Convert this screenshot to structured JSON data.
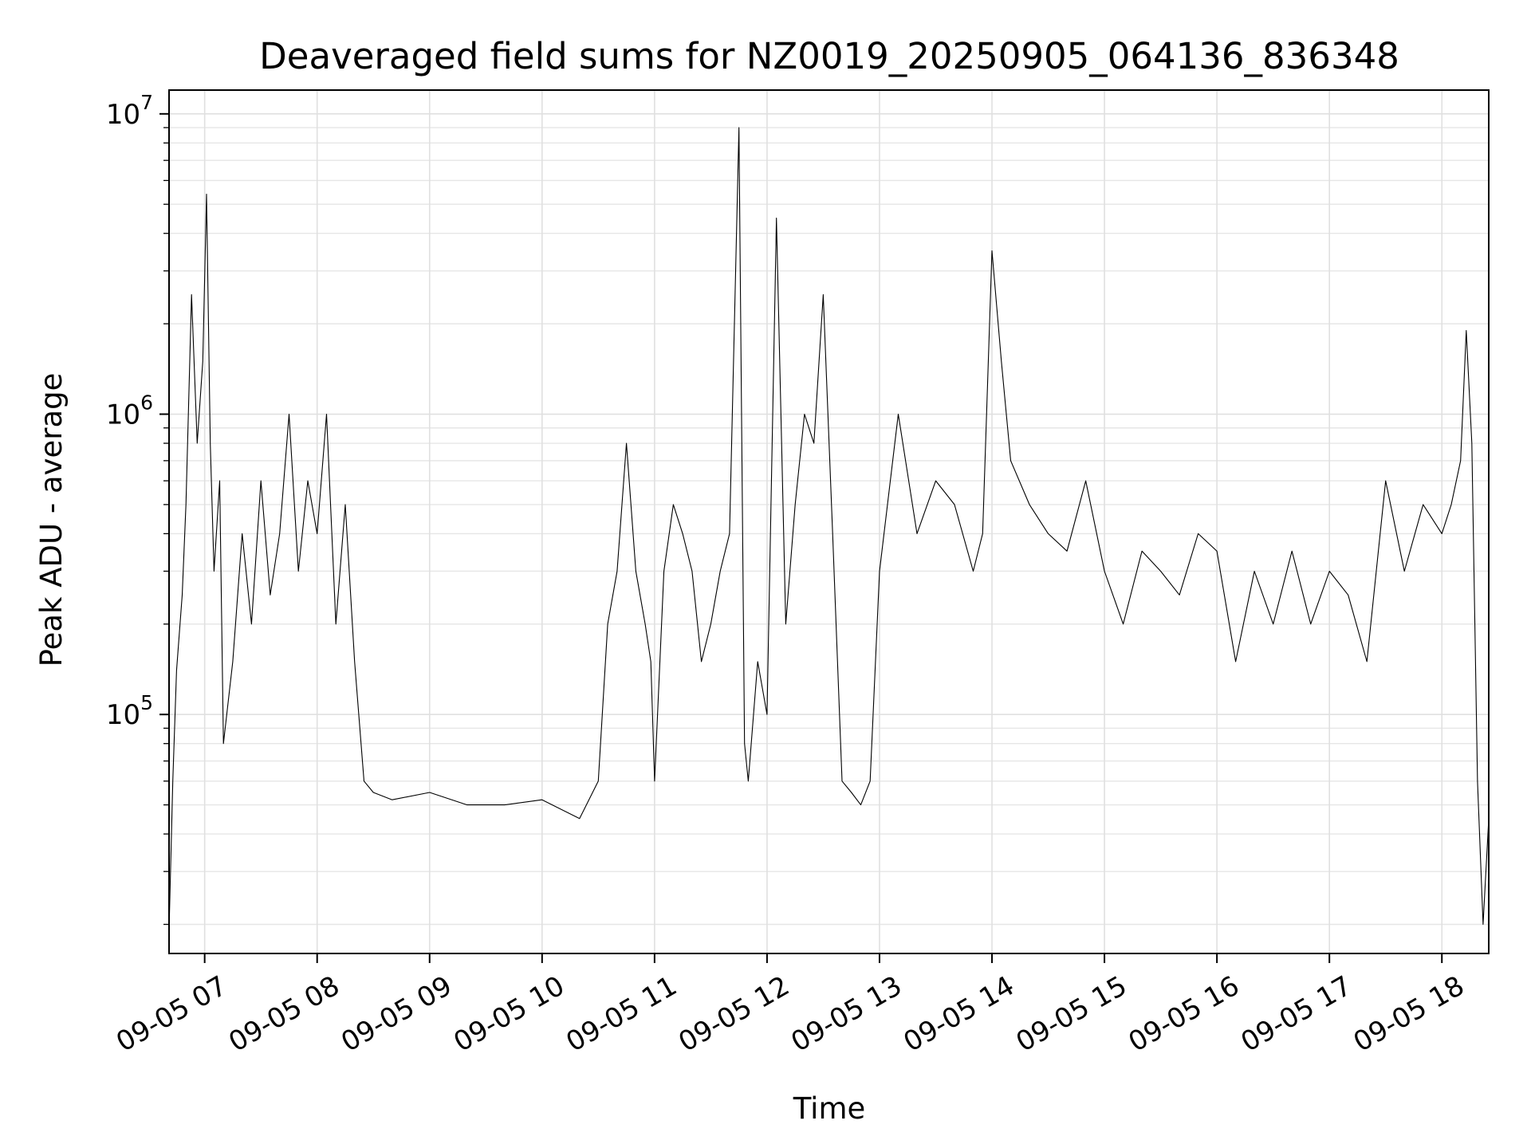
{
  "chart_data": {
    "type": "line",
    "title": "Deaveraged field sums for NZ0019_20250905_064136_836348",
    "xlabel": "Time",
    "ylabel": "Peak ADU - average",
    "yscale": "log",
    "grid": true,
    "xlim": [
      "2025-09-05 06:41",
      "2025-09-05 18:25"
    ],
    "ylim": [
      16000,
      12000000
    ],
    "x_ticks": [
      "09-05 07",
      "09-05 08",
      "09-05 09",
      "09-05 10",
      "09-05 11",
      "09-05 12",
      "09-05 13",
      "09-05 14",
      "09-05 15",
      "09-05 16",
      "09-05 17",
      "09-05 18"
    ],
    "y_ticks": [
      {
        "base": "10",
        "exp": "5"
      },
      {
        "base": "10",
        "exp": "6"
      },
      {
        "base": "10",
        "exp": "7"
      }
    ],
    "series": [
      {
        "color": "#000000",
        "x": [
          "2025-09-05 06:41",
          "2025-09-05 06:43",
          "2025-09-05 06:45",
          "2025-09-05 06:48",
          "2025-09-05 06:50",
          "2025-09-05 06:53",
          "2025-09-05 06:56",
          "2025-09-05 06:59",
          "2025-09-05 07:01",
          "2025-09-05 07:03",
          "2025-09-05 07:05",
          "2025-09-05 07:08",
          "2025-09-05 07:10",
          "2025-09-05 07:15",
          "2025-09-05 07:20",
          "2025-09-05 07:25",
          "2025-09-05 07:30",
          "2025-09-05 07:35",
          "2025-09-05 07:40",
          "2025-09-05 07:45",
          "2025-09-05 07:50",
          "2025-09-05 07:55",
          "2025-09-05 08:00",
          "2025-09-05 08:05",
          "2025-09-05 08:10",
          "2025-09-05 08:15",
          "2025-09-05 08:20",
          "2025-09-05 08:25",
          "2025-09-05 08:30",
          "2025-09-05 08:40",
          "2025-09-05 09:00",
          "2025-09-05 09:20",
          "2025-09-05 09:40",
          "2025-09-05 10:00",
          "2025-09-05 10:20",
          "2025-09-05 10:30",
          "2025-09-05 10:35",
          "2025-09-05 10:40",
          "2025-09-05 10:45",
          "2025-09-05 10:50",
          "2025-09-05 10:55",
          "2025-09-05 10:58",
          "2025-09-05 11:00",
          "2025-09-05 11:05",
          "2025-09-05 11:10",
          "2025-09-05 11:15",
          "2025-09-05 11:20",
          "2025-09-05 11:25",
          "2025-09-05 11:30",
          "2025-09-05 11:35",
          "2025-09-05 11:40",
          "2025-09-05 11:45",
          "2025-09-05 11:48",
          "2025-09-05 11:50",
          "2025-09-05 11:55",
          "2025-09-05 12:00",
          "2025-09-05 12:05",
          "2025-09-05 12:10",
          "2025-09-05 12:15",
          "2025-09-05 12:20",
          "2025-09-05 12:25",
          "2025-09-05 12:30",
          "2025-09-05 12:35",
          "2025-09-05 12:40",
          "2025-09-05 12:45",
          "2025-09-05 12:50",
          "2025-09-05 12:55",
          "2025-09-05 13:00",
          "2025-09-05 13:10",
          "2025-09-05 13:20",
          "2025-09-05 13:30",
          "2025-09-05 13:40",
          "2025-09-05 13:50",
          "2025-09-05 13:55",
          "2025-09-05 14:00",
          "2025-09-05 14:05",
          "2025-09-05 14:10",
          "2025-09-05 14:20",
          "2025-09-05 14:30",
          "2025-09-05 14:40",
          "2025-09-05 14:50",
          "2025-09-05 15:00",
          "2025-09-05 15:10",
          "2025-09-05 15:20",
          "2025-09-05 15:30",
          "2025-09-05 15:40",
          "2025-09-05 15:50",
          "2025-09-05 16:00",
          "2025-09-05 16:10",
          "2025-09-05 16:20",
          "2025-09-05 16:30",
          "2025-09-05 16:40",
          "2025-09-05 16:50",
          "2025-09-05 17:00",
          "2025-09-05 17:10",
          "2025-09-05 17:20",
          "2025-09-05 17:30",
          "2025-09-05 17:40",
          "2025-09-05 17:50",
          "2025-09-05 18:00",
          "2025-09-05 18:05",
          "2025-09-05 18:10",
          "2025-09-05 18:13",
          "2025-09-05 18:16",
          "2025-09-05 18:19",
          "2025-09-05 18:22",
          "2025-09-05 18:25"
        ],
        "y": [
          19000,
          60000,
          140000,
          250000,
          500000,
          2500000,
          800000,
          1500000,
          5400000,
          800000,
          300000,
          600000,
          80000,
          150000,
          400000,
          200000,
          600000,
          250000,
          400000,
          1000000,
          300000,
          600000,
          400000,
          1000000,
          200000,
          500000,
          150000,
          60000,
          55000,
          52000,
          55000,
          50000,
          50000,
          52000,
          45000,
          60000,
          200000,
          300000,
          800000,
          300000,
          200000,
          150000,
          60000,
          300000,
          500000,
          400000,
          300000,
          150000,
          200000,
          300000,
          400000,
          9000000,
          80000,
          60000,
          150000,
          100000,
          4500000,
          200000,
          500000,
          1000000,
          800000,
          2500000,
          400000,
          60000,
          55000,
          50000,
          60000,
          300000,
          1000000,
          400000,
          600000,
          500000,
          300000,
          400000,
          3500000,
          1500000,
          700000,
          500000,
          400000,
          350000,
          600000,
          300000,
          200000,
          350000,
          300000,
          250000,
          400000,
          350000,
          150000,
          300000,
          200000,
          350000,
          200000,
          300000,
          250000,
          150000,
          600000,
          300000,
          500000,
          400000,
          500000,
          700000,
          1900000,
          800000,
          60000,
          20000,
          45000
        ]
      }
    ]
  }
}
